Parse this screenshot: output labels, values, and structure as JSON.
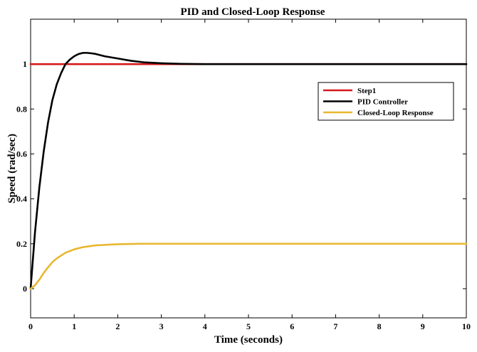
{
  "chart_data": {
    "type": "line",
    "title": "PID and Closed-Loop Response",
    "xlabel": "Time (seconds)",
    "ylabel": "Speed (rad/sec)",
    "xlim": [
      0,
      10
    ],
    "ylim": [
      -0.13,
      1.2
    ],
    "xticks": [
      "0",
      "1",
      "2",
      "3",
      "4",
      "5",
      "6",
      "7",
      "8",
      "9",
      "10"
    ],
    "yticks": [
      "0",
      "0.2",
      "0.4",
      "0.6",
      "0.8",
      "1"
    ],
    "grid": false,
    "legend_position": "top-right",
    "series": [
      {
        "name": "Step1",
        "color": "#d7191c",
        "x": [
          0,
          10
        ],
        "y": [
          1,
          1
        ]
      },
      {
        "name": "PID Controller",
        "color": "#000000",
        "x": [
          0,
          0.1,
          0.2,
          0.3,
          0.4,
          0.5,
          0.6,
          0.7,
          0.8,
          0.9,
          1.0,
          1.1,
          1.2,
          1.3,
          1.4,
          1.5,
          1.7,
          2.0,
          2.3,
          2.6,
          3.0,
          3.5,
          4.0,
          5.0,
          6.0,
          8.0,
          10.0
        ],
        "y": [
          0,
          0.25,
          0.45,
          0.61,
          0.74,
          0.84,
          0.91,
          0.96,
          1.0,
          1.02,
          1.035,
          1.045,
          1.05,
          1.05,
          1.048,
          1.045,
          1.035,
          1.025,
          1.015,
          1.008,
          1.004,
          1.001,
          1.0,
          1.0,
          1.0,
          1.0,
          1.0
        ]
      },
      {
        "name": "Closed-Loop Response",
        "color": "#e8b730",
        "x": [
          0,
          0.1,
          0.2,
          0.3,
          0.4,
          0.5,
          0.6,
          0.8,
          1.0,
          1.2,
          1.5,
          2.0,
          2.5,
          3.0,
          4.0,
          5.0,
          7.0,
          10.0
        ],
        "y": [
          0,
          0.015,
          0.04,
          0.07,
          0.095,
          0.118,
          0.135,
          0.16,
          0.175,
          0.185,
          0.193,
          0.198,
          0.2,
          0.2,
          0.2,
          0.2,
          0.2,
          0.2
        ]
      }
    ]
  }
}
